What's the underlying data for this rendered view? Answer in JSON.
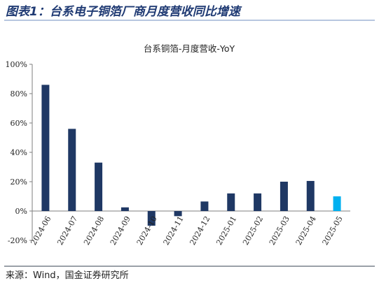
{
  "figure": {
    "title": "图表1：台系电子铜箔厂商月度营收同比增速",
    "source": "来源：Wind，国金证券研究所"
  },
  "colors": {
    "bar": "#1f3864",
    "bar_highlight": "#00b0f0",
    "axis": "#7f7f7f"
  },
  "chart_data": {
    "type": "bar",
    "title": "台系铜箔-月度营收-YoY",
    "categories": [
      "2024-06",
      "2024-07",
      "2024-08",
      "2024-09",
      "2024-10",
      "2024-11",
      "2024-12",
      "2025-01",
      "2025-02",
      "2025-03",
      "2025-04",
      "2025-05"
    ],
    "values": [
      86,
      56,
      33,
      2.5,
      -10,
      -3.5,
      6.5,
      12,
      12,
      20,
      20.5,
      10
    ],
    "highlight_index": 11,
    "ylim": [
      -20,
      100
    ],
    "yticks": [
      -20,
      0,
      20,
      40,
      60,
      80,
      100
    ],
    "ytick_labels": [
      "-20%",
      "0%",
      "20%",
      "40%",
      "60%",
      "80%",
      "100%"
    ],
    "xlabel": "",
    "ylabel": "",
    "grid": false,
    "legend": false
  }
}
